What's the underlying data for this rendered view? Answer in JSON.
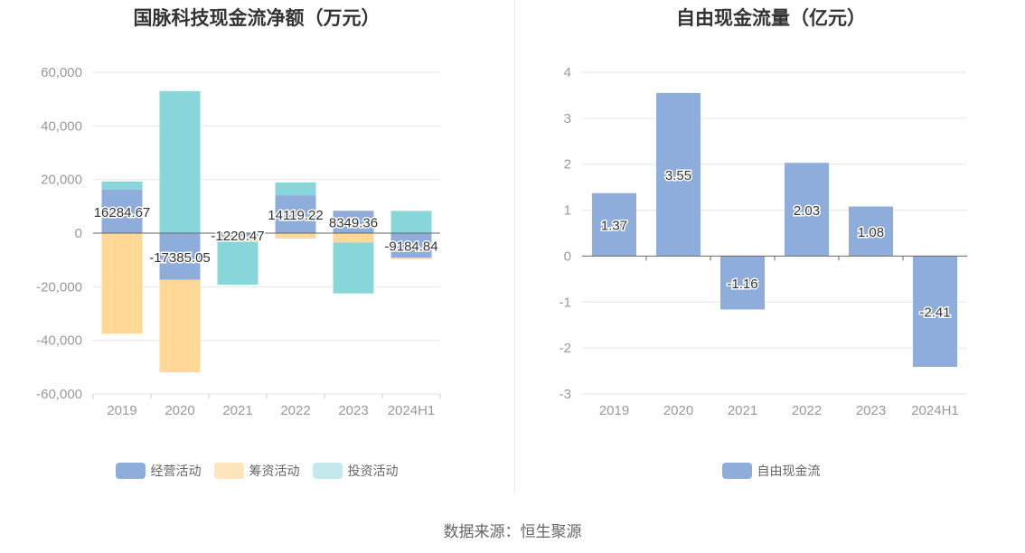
{
  "source_label": "数据来源：恒生聚源",
  "chart_data": [
    {
      "type": "bar",
      "stacked": true,
      "title": "国脉科技现金流净额（万元）",
      "categories": [
        "2019",
        "2020",
        "2021",
        "2022",
        "2023",
        "2024H1"
      ],
      "ylim": [
        -60000,
        60000
      ],
      "yticks": [
        60000,
        40000,
        20000,
        0,
        -20000,
        -40000,
        -60000
      ],
      "ytick_labels": [
        "60,000",
        "40,000",
        "20,000",
        "0",
        "-20,000",
        "-40,000",
        "-60,000"
      ],
      "grid": true,
      "legend_position": "bottom",
      "series": [
        {
          "name": "经营活动",
          "color": "#8eaddb",
          "values": [
            16284.67,
            -17385.05,
            -1220.47,
            14119.22,
            8349.36,
            -9184.84
          ],
          "data_labels": [
            "16284.67",
            "-17385.05",
            "-1220.47",
            "14119.22",
            "8349.36",
            "-9184.84"
          ]
        },
        {
          "name": "筹资活动",
          "color": "#ffd898",
          "values": [
            -37500,
            -34500,
            -2000,
            -2000,
            -3500,
            -500
          ]
        },
        {
          "name": "投资活动",
          "color": "#88d6da",
          "values": [
            3000,
            53000,
            -16000,
            4800,
            -19000,
            8300
          ]
        }
      ],
      "legend_colors": [
        "#8eaddb",
        "#ffe5b9",
        "#c3e9ec"
      ]
    },
    {
      "type": "bar",
      "title": "自由现金流量（亿元）",
      "categories": [
        "2019",
        "2020",
        "2021",
        "2022",
        "2023",
        "2024H1"
      ],
      "ylim": [
        -3,
        4
      ],
      "yticks": [
        4,
        3,
        2,
        1,
        0,
        -1,
        -2,
        -3
      ],
      "ytick_labels": [
        "4",
        "3",
        "2",
        "1",
        "0",
        "-1",
        "-2",
        "-3"
      ],
      "grid": true,
      "legend_position": "bottom",
      "series": [
        {
          "name": "自由现金流",
          "color": "#8eaddb",
          "values": [
            1.37,
            3.55,
            -1.16,
            2.03,
            1.08,
            -2.41
          ],
          "data_labels": [
            "1.37",
            "3.55",
            "-1.16",
            "2.03",
            "1.08",
            "-2.41"
          ]
        }
      ],
      "legend_colors": [
        "#8eaddb"
      ]
    }
  ]
}
